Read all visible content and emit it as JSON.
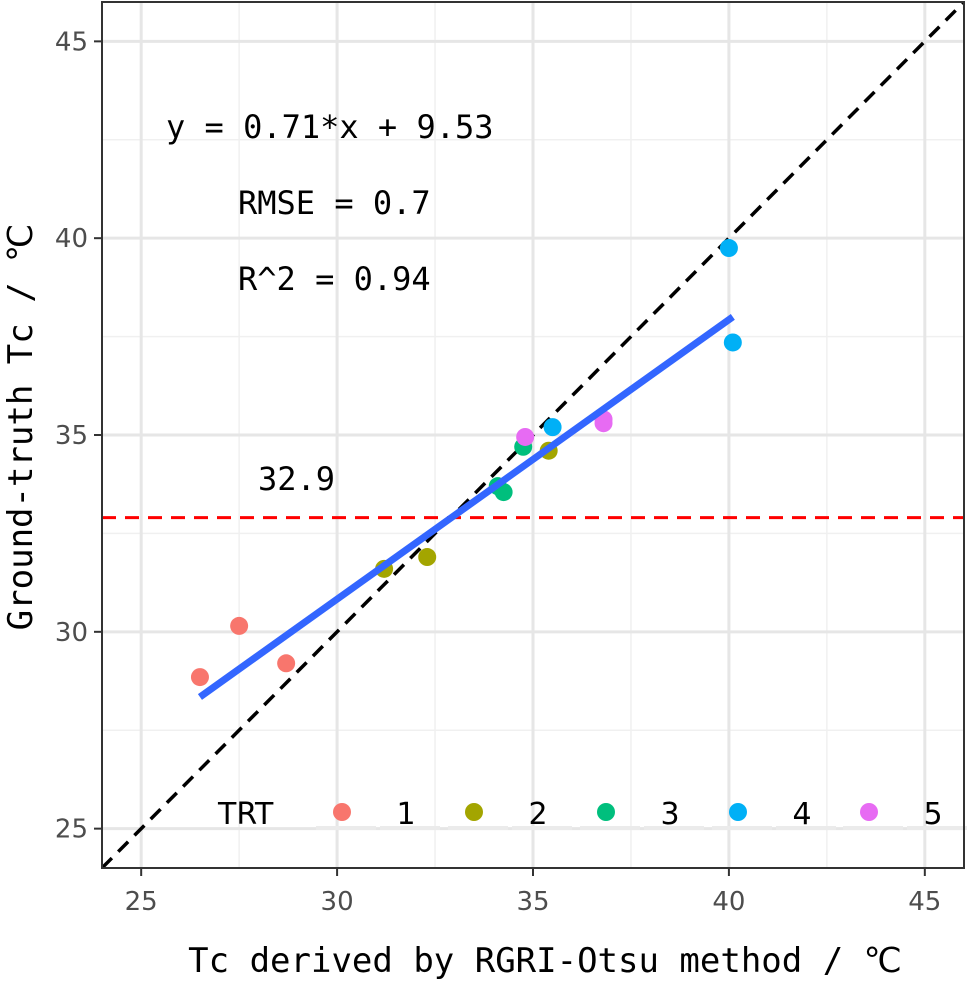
{
  "chart_data": {
    "type": "scatter",
    "xlabel": "Tc derived by RGRI-Otsu method / ℃",
    "ylabel": "Ground-truth Tc / ℃",
    "xlim": [
      24,
      46
    ],
    "ylim": [
      24,
      46
    ],
    "x_ticks": [
      25,
      30,
      35,
      40,
      45
    ],
    "y_ticks": [
      25,
      30,
      35,
      40,
      45
    ],
    "x_tick_labels": [
      "25",
      "30",
      "35",
      "40",
      "45"
    ],
    "y_tick_labels": [
      "25",
      "30",
      "35",
      "40",
      "45"
    ],
    "grid": true,
    "series": [
      {
        "name": "1",
        "color": "#F8766D",
        "points": [
          [
            26.5,
            28.85
          ],
          [
            27.5,
            30.15
          ],
          [
            28.7,
            29.2
          ]
        ]
      },
      {
        "name": "2",
        "color": "#A3A500",
        "points": [
          [
            31.2,
            31.6
          ],
          [
            32.3,
            31.9
          ],
          [
            35.4,
            34.6
          ]
        ]
      },
      {
        "name": "3",
        "color": "#00BF7D",
        "points": [
          [
            34.1,
            33.7
          ],
          [
            34.25,
            33.55
          ],
          [
            34.75,
            34.7
          ]
        ]
      },
      {
        "name": "4",
        "color": "#00B0F6",
        "points": [
          [
            35.5,
            35.2
          ],
          [
            40.0,
            39.75
          ],
          [
            40.1,
            37.35
          ]
        ]
      },
      {
        "name": "5",
        "color": "#E76BF3",
        "points": [
          [
            34.8,
            34.95
          ],
          [
            36.8,
            35.4
          ],
          [
            36.8,
            35.3
          ]
        ]
      }
    ],
    "fit_line": {
      "slope": 0.71,
      "intercept": 9.53,
      "x_range": [
        26.5,
        40.1
      ],
      "color": "#3366FF"
    },
    "identity_line": {
      "slope": 1,
      "intercept": 0,
      "color": "#000000",
      "style": "dashed"
    },
    "threshold_line": {
      "y": 32.9,
      "color": "#FF0000",
      "style": "dashed",
      "label": "32.9"
    },
    "annotations": {
      "equation": "y = 0.71*x + 9.53",
      "rmse": "RMSE = 0.7",
      "r2": "R^2 = 0.94"
    },
    "legend": {
      "title": "TRT",
      "placement": "bottom-inside",
      "entries": [
        "1",
        "2",
        "3",
        "4",
        "5"
      ]
    }
  }
}
